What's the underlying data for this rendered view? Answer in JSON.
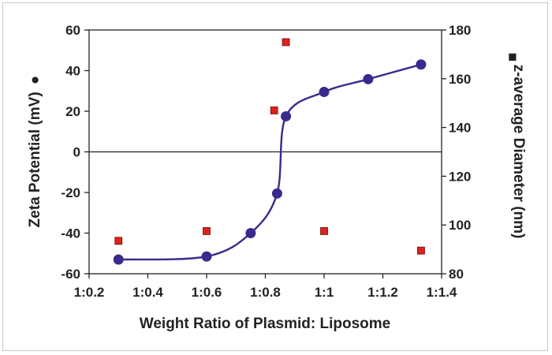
{
  "chart_data": {
    "type": "scatter",
    "xlabel": "Weight Ratio of Plasmid: Liposome",
    "ylabel_left": "Zeta Potential (mV)",
    "ylabel_right": "z-average Diameter (nm)",
    "left_marker_symbol": "●",
    "right_marker_symbol": "■",
    "x_ticks": [
      {
        "value": 0.2,
        "label": "1:0.2"
      },
      {
        "value": 0.4,
        "label": "1:0.4"
      },
      {
        "value": 0.6,
        "label": "1:0.6"
      },
      {
        "value": 0.8,
        "label": "1:0.8"
      },
      {
        "value": 1.0,
        "label": "1:1"
      },
      {
        "value": 1.2,
        "label": "1:1.2"
      },
      {
        "value": 1.4,
        "label": "1:1.4"
      }
    ],
    "xlim": [
      0.2,
      1.4
    ],
    "ylim_left": [
      -60,
      60
    ],
    "ylim_right": [
      80,
      180
    ],
    "y_ticks_left": [
      -60,
      -40,
      -20,
      0,
      20,
      40,
      60
    ],
    "y_ticks_right": [
      80,
      100,
      120,
      140,
      160,
      180
    ],
    "zero_line": true,
    "grid": false,
    "series": [
      {
        "axis": "left",
        "marker": "circle",
        "color": "#3a2a8c",
        "fitted_curve": true,
        "x": [
          0.3,
          0.6,
          0.75,
          0.84,
          0.87,
          1.0,
          1.15,
          1.33
        ],
        "y": [
          -53,
          -51.5,
          -40,
          -20.5,
          17.5,
          29.5,
          35.8,
          43
        ]
      },
      {
        "axis": "right",
        "marker": "square",
        "color": "#e0201b",
        "x": [
          0.3,
          0.6,
          0.83,
          0.87,
          1.0,
          1.33
        ],
        "y": [
          93.5,
          97.5,
          147,
          175,
          97.5,
          89.5
        ]
      }
    ]
  }
}
